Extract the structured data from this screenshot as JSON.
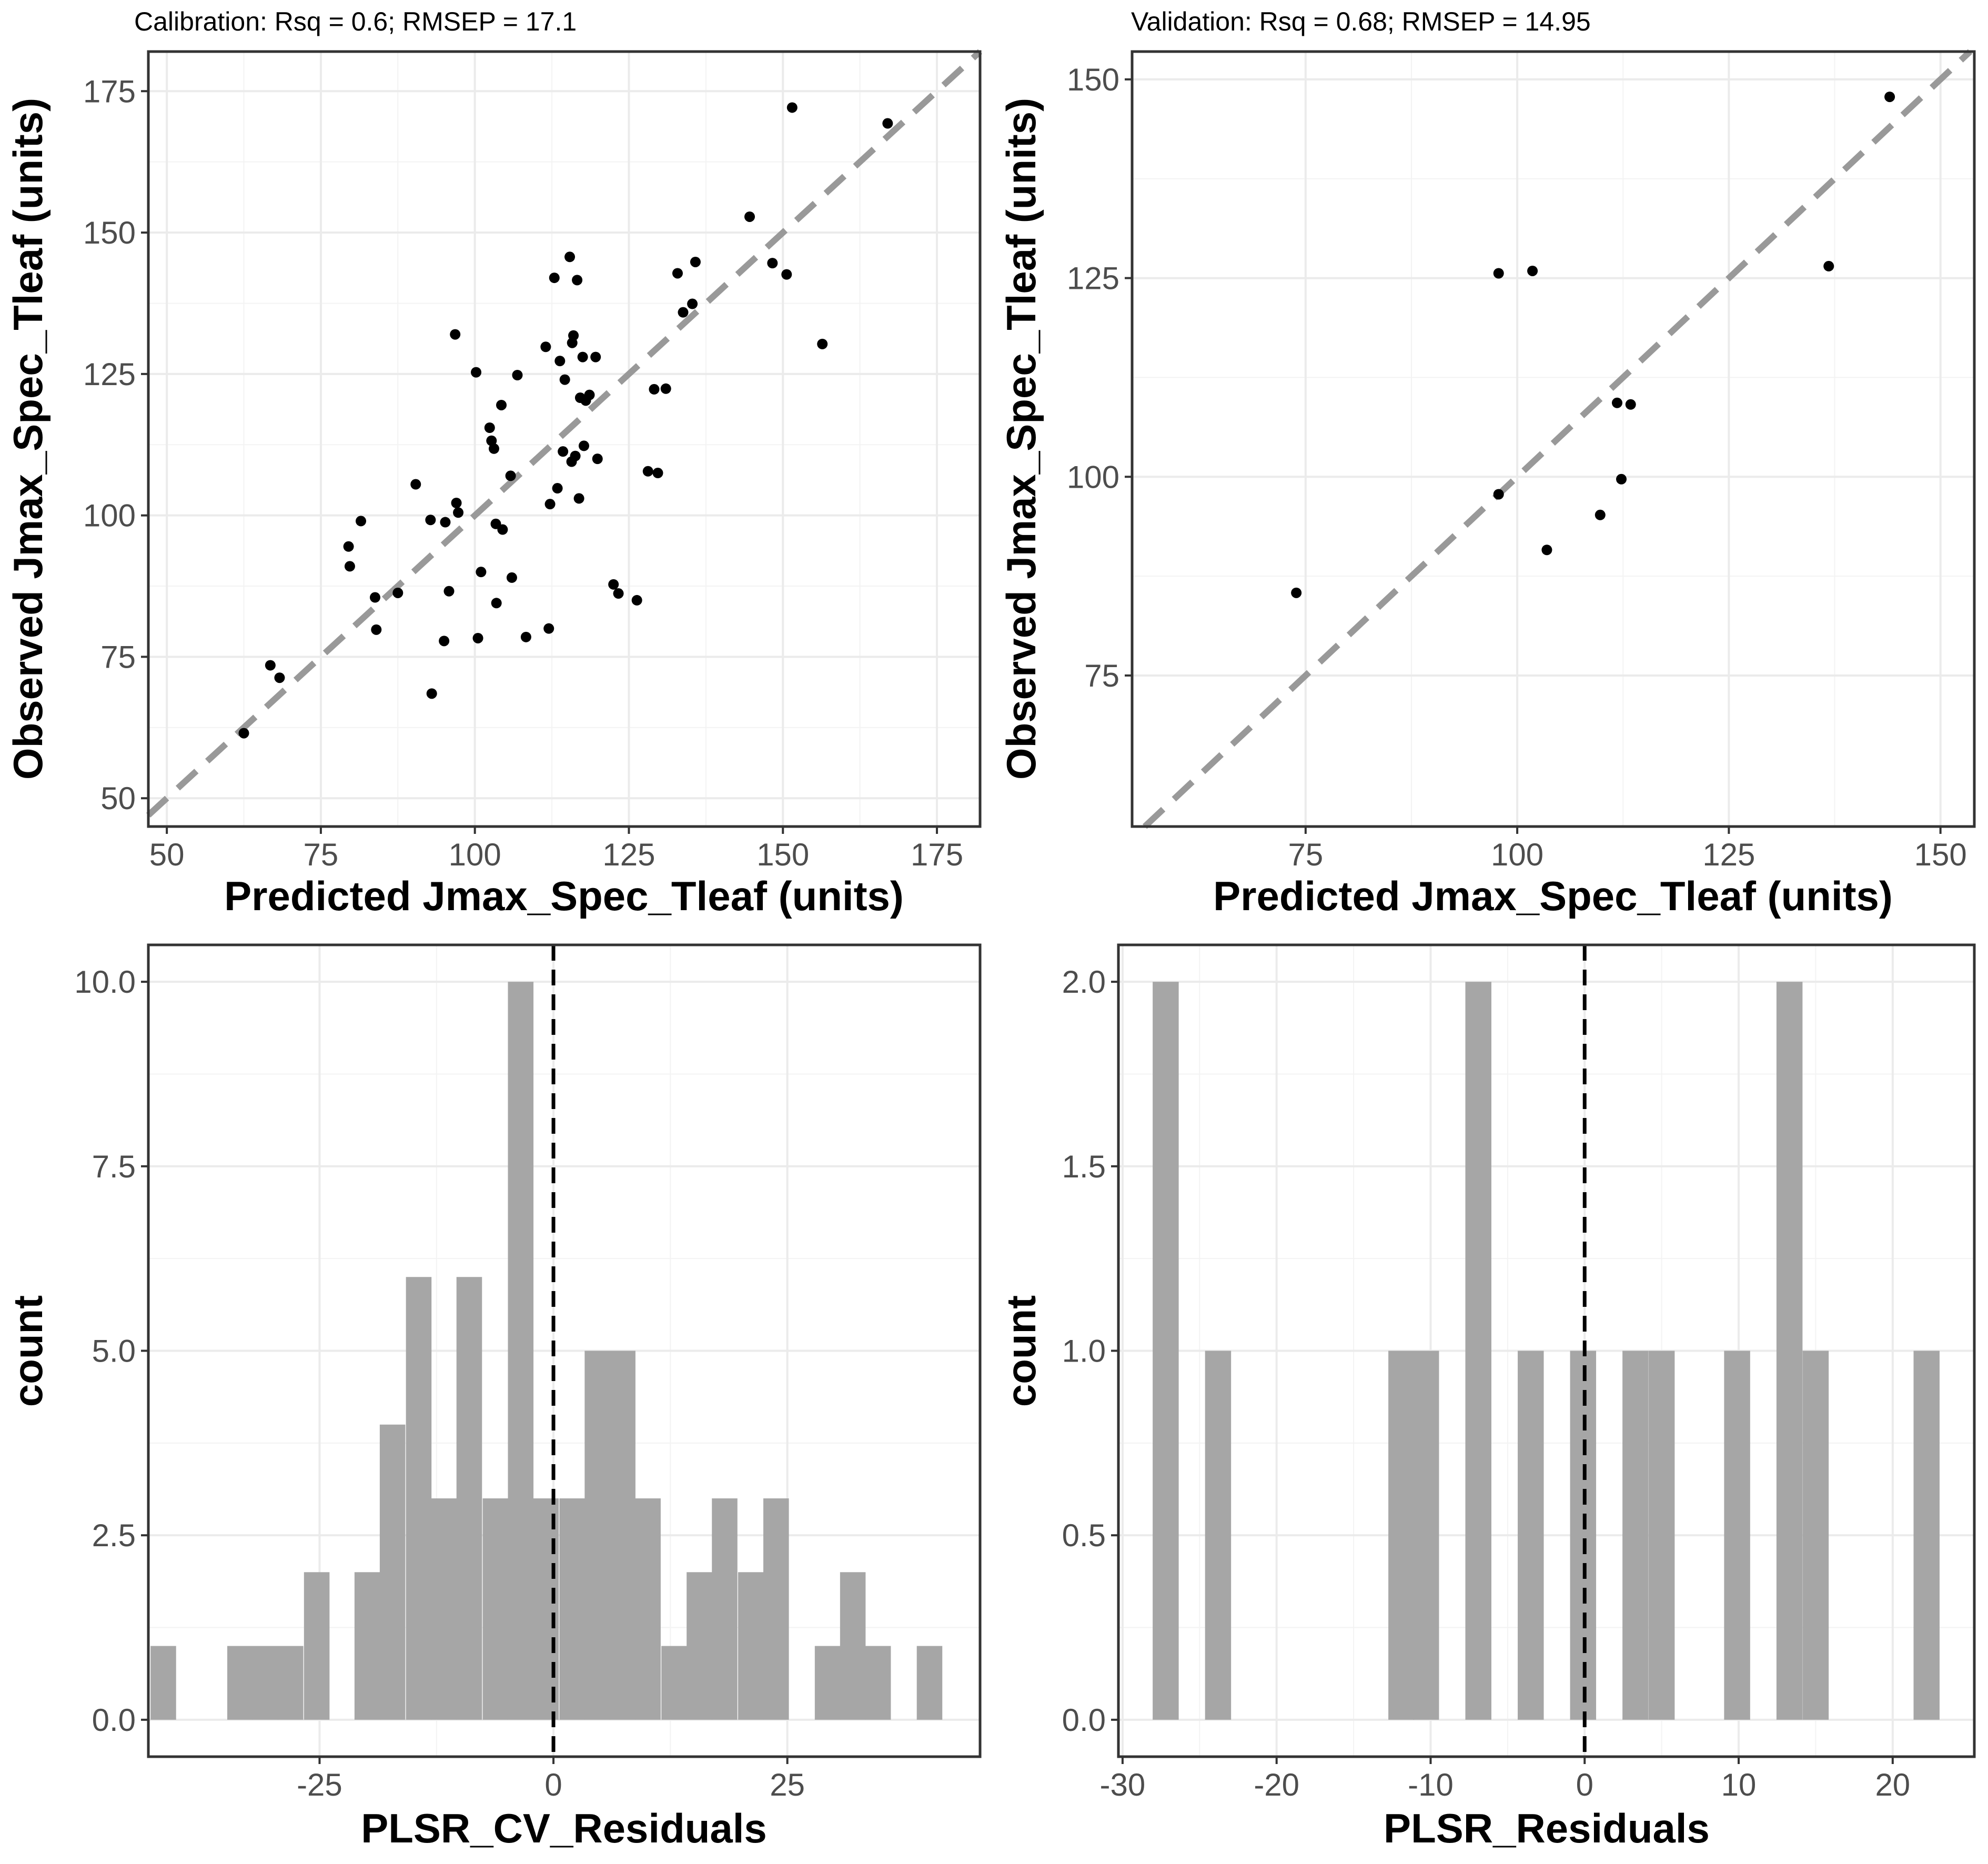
{
  "chart_data": [
    {
      "id": "calibration",
      "type": "scatter",
      "title": "Calibration: Rsq = 0.6; RMSEP = 17.1",
      "xlabel": "Predicted Jmax_Spec_Tleaf (units)",
      "ylabel": "Observed Jmax_Spec_Tleaf (units)",
      "xlim": [
        47,
        182
      ],
      "ylim": [
        45,
        182
      ],
      "xticks": [
        50,
        75,
        100,
        125,
        150,
        175
      ],
      "yticks": [
        50,
        75,
        100,
        125,
        150,
        175
      ],
      "reference_line": "1:1 dashed gray",
      "grid": true,
      "points": [
        [
          62.5,
          61.5
        ],
        [
          66.8,
          73.5
        ],
        [
          68.3,
          71.3
        ],
        [
          79.5,
          94.5
        ],
        [
          79.7,
          91.0
        ],
        [
          81.5,
          99.0
        ],
        [
          83.8,
          85.5
        ],
        [
          84.0,
          79.8
        ],
        [
          87.5,
          86.3
        ],
        [
          90.4,
          105.5
        ],
        [
          92.8,
          99.2
        ],
        [
          93.0,
          68.5
        ],
        [
          95.0,
          77.8
        ],
        [
          95.2,
          98.8
        ],
        [
          95.8,
          86.6
        ],
        [
          96.8,
          132.0
        ],
        [
          97.0,
          102.2
        ],
        [
          97.3,
          100.5
        ],
        [
          100.2,
          125.3
        ],
        [
          100.5,
          78.3
        ],
        [
          101.0,
          90.0
        ],
        [
          102.4,
          115.5
        ],
        [
          102.7,
          113.2
        ],
        [
          103.1,
          111.8
        ],
        [
          103.4,
          98.5
        ],
        [
          103.5,
          84.5
        ],
        [
          104.3,
          119.5
        ],
        [
          104.5,
          97.5
        ],
        [
          105.8,
          107.0
        ],
        [
          106.0,
          89.0
        ],
        [
          106.9,
          124.8
        ],
        [
          108.3,
          78.5
        ],
        [
          111.5,
          129.8
        ],
        [
          112.0,
          80.0
        ],
        [
          112.2,
          102.0
        ],
        [
          112.9,
          142.0
        ],
        [
          113.4,
          104.8
        ],
        [
          113.8,
          127.3
        ],
        [
          114.3,
          111.3
        ],
        [
          114.6,
          124.0
        ],
        [
          115.4,
          145.7
        ],
        [
          115.7,
          109.5
        ],
        [
          115.8,
          130.5
        ],
        [
          116.0,
          131.8
        ],
        [
          116.3,
          110.5
        ],
        [
          116.6,
          141.6
        ],
        [
          116.9,
          103.0
        ],
        [
          117.1,
          120.8
        ],
        [
          117.5,
          128.0
        ],
        [
          117.7,
          112.3
        ],
        [
          118.0,
          120.3
        ],
        [
          118.6,
          121.3
        ],
        [
          119.6,
          128.0
        ],
        [
          119.9,
          110.0
        ],
        [
          122.5,
          87.8
        ],
        [
          123.3,
          86.2
        ],
        [
          126.3,
          85.0
        ],
        [
          128.1,
          107.8
        ],
        [
          129.1,
          122.3
        ],
        [
          129.7,
          107.5
        ],
        [
          131.0,
          122.4
        ],
        [
          132.9,
          142.8
        ],
        [
          133.8,
          135.9
        ],
        [
          135.3,
          137.4
        ],
        [
          135.8,
          144.8
        ],
        [
          144.6,
          152.8
        ],
        [
          148.3,
          144.6
        ],
        [
          150.6,
          142.6
        ],
        [
          151.5,
          172.1
        ],
        [
          156.4,
          130.3
        ],
        [
          167.0,
          169.3
        ]
      ]
    },
    {
      "id": "validation",
      "type": "scatter",
      "title": "Validation: Rsq = 0.68; RMSEP = 14.95",
      "xlabel": "Predicted Jmax_Spec_Tleaf (units)",
      "ylabel": "Observed Jmax_Spec_Tleaf (units)",
      "xlim": [
        54.5,
        154
      ],
      "ylim": [
        56,
        153.5
      ],
      "xticks": [
        75,
        100,
        125,
        150
      ],
      "yticks": [
        75,
        100,
        125,
        150
      ],
      "reference_line": "1:1 dashed gray",
      "grid": true,
      "points": [
        [
          73.9,
          85.4
        ],
        [
          97.8,
          97.8
        ],
        [
          97.8,
          125.6
        ],
        [
          101.8,
          125.9
        ],
        [
          103.5,
          90.8
        ],
        [
          109.8,
          95.2
        ],
        [
          111.8,
          109.3
        ],
        [
          112.3,
          99.7
        ],
        [
          113.4,
          109.1
        ],
        [
          136.8,
          126.5
        ],
        [
          144.0,
          147.8
        ]
      ]
    },
    {
      "id": "cv_residuals",
      "type": "bar",
      "title": "",
      "xlabel": "PLSR_CV_Residuals",
      "ylabel": "count",
      "xlim": [
        -43.3,
        45.6
      ],
      "ylim": [
        -0.5,
        10.5
      ],
      "xticks": [
        -25,
        0,
        25
      ],
      "yticks": [
        0.0,
        2.5,
        5.0,
        7.5,
        10.0
      ],
      "ytick_labels": [
        "0.0",
        "2.5",
        "5.0",
        "7.5",
        "10.0"
      ],
      "reference_line": "x = 0 dashed black",
      "bin_width": 2.73,
      "bins": [
        [
          -41.7,
          1
        ],
        [
          -39.0,
          0
        ],
        [
          -36.3,
          0
        ],
        [
          -33.5,
          1
        ],
        [
          -30.8,
          1
        ],
        [
          -28.1,
          1
        ],
        [
          -25.3,
          2
        ],
        [
          -22.6,
          0
        ],
        [
          -19.9,
          2
        ],
        [
          -17.2,
          4
        ],
        [
          -14.4,
          6
        ],
        [
          -11.7,
          3
        ],
        [
          -9.0,
          6
        ],
        [
          -6.2,
          3
        ],
        [
          -3.5,
          10
        ],
        [
          -0.8,
          3
        ],
        [
          2.0,
          3
        ],
        [
          4.7,
          5
        ],
        [
          7.4,
          5
        ],
        [
          10.1,
          3
        ],
        [
          12.9,
          1
        ],
        [
          15.6,
          2
        ],
        [
          18.3,
          3
        ],
        [
          21.1,
          2
        ],
        [
          23.8,
          3
        ],
        [
          26.5,
          0
        ],
        [
          29.3,
          1
        ],
        [
          32.0,
          2
        ],
        [
          34.7,
          1
        ],
        [
          37.4,
          0
        ],
        [
          40.2,
          1
        ]
      ]
    },
    {
      "id": "residuals",
      "type": "bar",
      "title": "",
      "xlabel": "PLSR_Residuals",
      "ylabel": "count",
      "xlim": [
        -30.27,
        25.3
      ],
      "ylim": [
        -0.1,
        2.1
      ],
      "xticks": [
        -30,
        -20,
        -10,
        0,
        10,
        20
      ],
      "yticks": [
        0.0,
        0.5,
        1.0,
        1.5,
        2.0
      ],
      "ytick_labels": [
        "0.0",
        "0.5",
        "1.0",
        "1.5",
        "2.0"
      ],
      "reference_line": "x = 0 dashed black",
      "bin_width": 1.69,
      "bins": [
        [
          -27.2,
          2
        ],
        [
          -23.8,
          1
        ],
        [
          -11.9,
          1
        ],
        [
          -10.3,
          1
        ],
        [
          -6.9,
          2
        ],
        [
          -3.5,
          1
        ],
        [
          -0.1,
          1
        ],
        [
          3.3,
          1
        ],
        [
          5.0,
          1
        ],
        [
          9.9,
          1
        ],
        [
          13.3,
          2
        ],
        [
          15.0,
          1
        ],
        [
          22.2,
          1
        ]
      ]
    }
  ]
}
